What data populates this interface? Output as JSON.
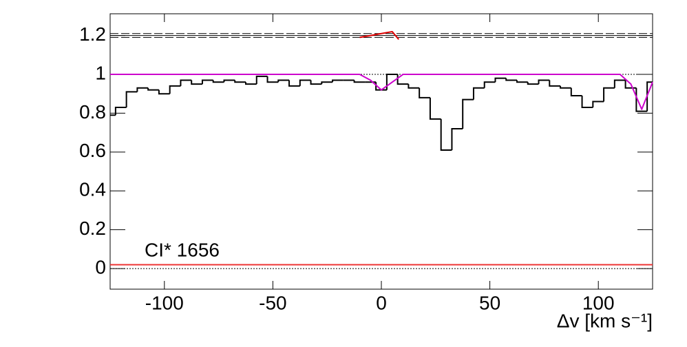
{
  "chart_data": {
    "type": "step",
    "title": "CI* 1656",
    "xlabel": "Δv [km s⁻¹]",
    "xlim": [
      -125,
      125
    ],
    "ylim": [
      -0.106,
      1.312
    ],
    "xticks": [
      -100,
      -50,
      0,
      50,
      100
    ],
    "yticks": [
      0,
      0.2,
      0.4,
      0.6,
      0.8,
      1,
      1.2
    ],
    "dotted_lines": [
      0,
      1
    ],
    "reference_lines": [
      1.19,
      1.2,
      1.21
    ],
    "reference_color": "#000000",
    "x": [
      -125,
      -120,
      -115,
      -110,
      -105,
      -100,
      -95,
      -90,
      -85,
      -80,
      -75,
      -70,
      -65,
      -60,
      -55,
      -50,
      -45,
      -40,
      -35,
      -30,
      -25,
      -20,
      -15,
      -10,
      -5,
      0,
      5,
      10,
      15,
      20,
      25,
      30,
      35,
      40,
      45,
      50,
      55,
      60,
      65,
      70,
      75,
      80,
      85,
      90,
      95,
      100,
      105,
      110,
      115,
      120,
      125
    ],
    "series": [
      {
        "color": "#000000",
        "values": [
          0.79,
          0.83,
          0.91,
          0.93,
          0.92,
          0.9,
          0.94,
          0.97,
          0.95,
          0.97,
          0.96,
          0.97,
          0.96,
          0.95,
          0.99,
          0.96,
          0.97,
          0.94,
          0.97,
          0.95,
          0.96,
          0.97,
          0.97,
          0.96,
          0.96,
          0.92,
          1.0,
          0.95,
          0.93,
          0.88,
          0.77,
          0.61,
          0.72,
          0.87,
          0.93,
          0.96,
          0.98,
          0.97,
          0.96,
          0.95,
          0.97,
          0.94,
          0.93,
          0.89,
          0.83,
          0.86,
          0.93,
          0.97,
          0.93,
          0.81,
          0.96
        ]
      }
    ],
    "lines": [
      {
        "color": "#cc00cc",
        "x": [
          -125,
          -15,
          -10,
          -5,
          0,
          5,
          10,
          15,
          105,
          110,
          115,
          120,
          125
        ],
        "values": [
          1,
          1,
          1,
          0.97,
          0.92,
          0.96,
          1,
          1,
          1,
          1,
          0.95,
          0.82,
          0.96
        ]
      },
      {
        "color": "#dd0000",
        "x": [
          -10,
          -5,
          0,
          5,
          8
        ],
        "values": [
          1.19,
          1.2,
          1.21,
          1.22,
          1.18
        ]
      },
      {
        "color": "#ee3333",
        "x": [
          -125,
          125
        ],
        "values": [
          0.02,
          0.02
        ]
      }
    ]
  }
}
